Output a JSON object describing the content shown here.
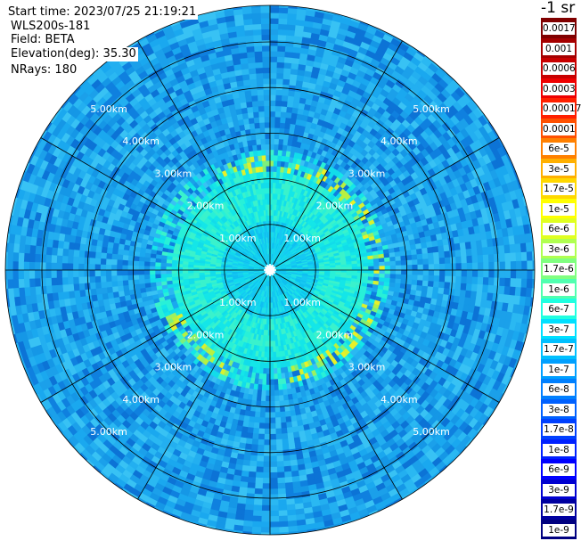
{
  "header": {
    "start_time": "Start time: 2023/07/25 21:19:21",
    "instrument": "WLS200s-181",
    "field": "Field: BETA",
    "elevation": "Elevation(deg): 35.30",
    "nrays": "NRays: 180"
  },
  "colorbar": {
    "unit_label": "-1 sr",
    "ticks": [
      "0.0017",
      "0.001",
      "0.0006",
      "0.0003",
      "0.00017",
      "0.0001",
      "6e-5",
      "3e-5",
      "1.7e-5",
      "1e-5",
      "6e-6",
      "3e-6",
      "1.7e-6",
      "1e-6",
      "6e-7",
      "3e-7",
      "1.7e-7",
      "1e-7",
      "6e-8",
      "3e-8",
      "1.7e-8",
      "1e-8",
      "6e-9",
      "3e-9",
      "1.7e-9",
      "1e-9"
    ],
    "colors": [
      "#800000",
      "#a50000",
      "#c80000",
      "#ee0000",
      "#ff2000",
      "#ff5000",
      "#ff8000",
      "#ffb000",
      "#ffd800",
      "#ffff00",
      "#e0ff20",
      "#b0ff50",
      "#80ff80",
      "#50ffb0",
      "#20ffe0",
      "#00e0ff",
      "#00c0ff",
      "#00a0ff",
      "#0080ff",
      "#0060ff",
      "#0040ff",
      "#0020ff",
      "#0000ff",
      "#0000d0",
      "#0000a0",
      "#000080"
    ]
  },
  "chart_data": {
    "type": "heatmap",
    "projection": "polar plan view (PPI)",
    "nrays": 180,
    "max_range_km": 5.8,
    "range_ring_labels": [
      "1.00km",
      "2.00km",
      "3.00km",
      "4.00km",
      "5.00km"
    ],
    "range_rings_km": [
      1,
      2,
      3,
      4,
      5
    ],
    "radial_lines_every_deg": 30,
    "typical_values_by_zone": [
      {
        "zone": "0-1 km",
        "color": "#14d0f0"
      },
      {
        "zone": "1-2 km",
        "color": "#12e8e8"
      },
      {
        "zone": "ring near 2.3 km",
        "color": "#c6f03c"
      },
      {
        "zone": "beyond 2.5 km",
        "color": "#1aa8ef"
      }
    ]
  }
}
